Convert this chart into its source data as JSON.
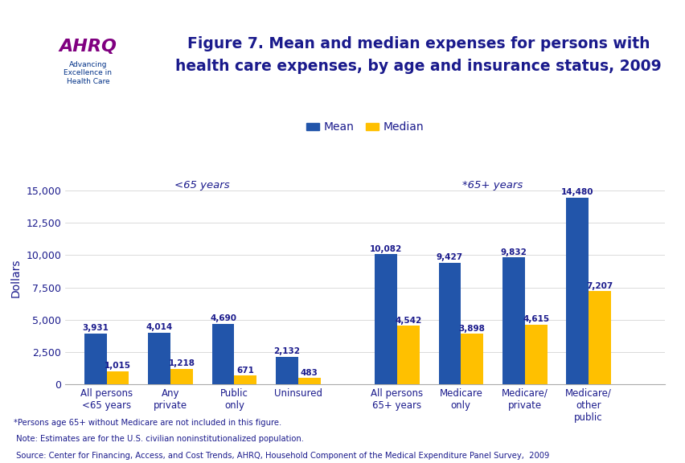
{
  "title": "Figure 7. Mean and median expenses for persons with\nhealth care expenses, by age and insurance status, 2009",
  "ylabel": "Dollars",
  "categories": [
    "All persons\n<65 years",
    "Any\nprivate",
    "Public\nonly",
    "Uninsured",
    "All persons\n65+ years",
    "Medicare\nonly",
    "Medicare/\nprivate",
    "Medicare/\nother\npublic"
  ],
  "mean_values": [
    3931,
    4014,
    4690,
    2132,
    10082,
    9427,
    9832,
    14480
  ],
  "median_values": [
    1015,
    1218,
    671,
    483,
    4542,
    3898,
    4615,
    7207
  ],
  "mean_color": "#2255AA",
  "median_color": "#FFC000",
  "bar_width": 0.35,
  "group1_label": "<65 years",
  "group2_label": "*65+ years",
  "ylim": [
    0,
    16500
  ],
  "yticks": [
    0,
    2500,
    5000,
    7500,
    10000,
    12500,
    15000
  ],
  "legend_mean": "Mean",
  "legend_median": "Median",
  "footer_lines": [
    "*Persons age 65+ without Medicare are not included in this figure.",
    " Note: Estimates are for the U.S. civilian noninstitutionalized population.",
    " Source: Center for Financing, Access, and Cost Trends, AHRQ, Household Component of the Medical Expenditure Panel Survey,  2009"
  ],
  "top_bar_color": "#00008B",
  "separator_color": "#1A1AA0",
  "background_color": "#FFFFFF",
  "title_color": "#1A1A8C",
  "footer_color": "#1A1A8C",
  "label_color": "#1A1A8C"
}
